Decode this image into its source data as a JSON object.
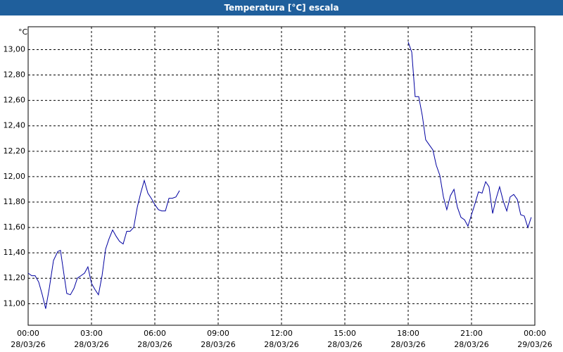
{
  "chart_data": {
    "type": "line",
    "title": "Temperatura [°C] escala",
    "y_label": "°C",
    "x": [
      0,
      0.17,
      0.33,
      0.5,
      0.67,
      0.83,
      1.0,
      1.2,
      1.4,
      1.53,
      1.67,
      1.83,
      2.0,
      2.17,
      2.33,
      2.5,
      2.67,
      2.83,
      3.0,
      3.17,
      3.33,
      3.5,
      3.67,
      3.83,
      4.0,
      4.17,
      4.33,
      4.5,
      4.67,
      4.83,
      5.0,
      5.17,
      5.33,
      5.5,
      5.67,
      5.83,
      6.0,
      6.17,
      6.33,
      6.5,
      6.67,
      6.83,
      7.0,
      7.17,
      7.5,
      18.0,
      18.17,
      18.33,
      18.5,
      18.67,
      18.83,
      19.0,
      19.17,
      19.33,
      19.5,
      19.67,
      19.83,
      20.0,
      20.17,
      20.33,
      20.5,
      20.67,
      20.83,
      21.0,
      21.17,
      21.33,
      21.5,
      21.67,
      21.83,
      22.0,
      22.17,
      22.33,
      22.5,
      22.67,
      22.83,
      23.0,
      23.17,
      23.33,
      23.5,
      23.67,
      23.83
    ],
    "series": [
      {
        "name": "Temperatura",
        "color": "#0000a0",
        "values": [
          11.24,
          11.22,
          11.22,
          11.17,
          11.07,
          10.96,
          11.12,
          11.34,
          11.41,
          11.42,
          11.26,
          11.08,
          11.07,
          11.12,
          11.2,
          11.22,
          11.24,
          11.29,
          11.16,
          11.11,
          11.07,
          11.22,
          11.43,
          11.51,
          11.58,
          11.53,
          11.49,
          11.47,
          11.57,
          11.57,
          11.6,
          11.76,
          11.87,
          11.97,
          11.87,
          11.83,
          11.78,
          11.74,
          11.73,
          11.73,
          11.83,
          11.83,
          11.84,
          11.89,
          null,
          13.06,
          12.98,
          12.63,
          12.63,
          12.48,
          12.29,
          12.25,
          12.21,
          12.09,
          12.01,
          11.84,
          11.74,
          11.85,
          11.9,
          11.76,
          11.68,
          11.66,
          11.61,
          11.7,
          11.79,
          11.88,
          11.87,
          11.96,
          11.92,
          11.71,
          11.83,
          11.92,
          11.81,
          11.73,
          11.84,
          11.86,
          11.82,
          11.7,
          11.69,
          11.6,
          11.68
        ]
      }
    ],
    "xlim": [
      0,
      24
    ],
    "xticks": [
      {
        "value": 0,
        "label": "00:00",
        "date": "28/03/26"
      },
      {
        "value": 3,
        "label": "03:00",
        "date": "28/03/26"
      },
      {
        "value": 6,
        "label": "06:00",
        "date": "28/03/26"
      },
      {
        "value": 9,
        "label": "09:00",
        "date": "28/03/26"
      },
      {
        "value": 12,
        "label": "12:00",
        "date": "28/03/26"
      },
      {
        "value": 15,
        "label": "15:00",
        "date": "28/03/26"
      },
      {
        "value": 18,
        "label": "18:00",
        "date": "28/03/26"
      },
      {
        "value": 21,
        "label": "21:00",
        "date": "28/03/26"
      },
      {
        "value": 24,
        "label": "00:00",
        "date": "29/03/26"
      }
    ],
    "ylim": [
      10.83,
      13.18
    ],
    "yticks": [
      {
        "value": 11,
        "label": "11,00"
      },
      {
        "value": 11.2,
        "label": "11,20"
      },
      {
        "value": 11.4,
        "label": "11,40"
      },
      {
        "value": 11.6,
        "label": "11,60"
      },
      {
        "value": 11.8,
        "label": "11,80"
      },
      {
        "value": 12,
        "label": "12,00"
      },
      {
        "value": 12.2,
        "label": "12,20"
      },
      {
        "value": 12.4,
        "label": "12,40"
      },
      {
        "value": 12.6,
        "label": "12,60"
      },
      {
        "value": 12.8,
        "label": "12,80"
      },
      {
        "value": 13,
        "label": "13,00"
      }
    ],
    "grid": true
  }
}
